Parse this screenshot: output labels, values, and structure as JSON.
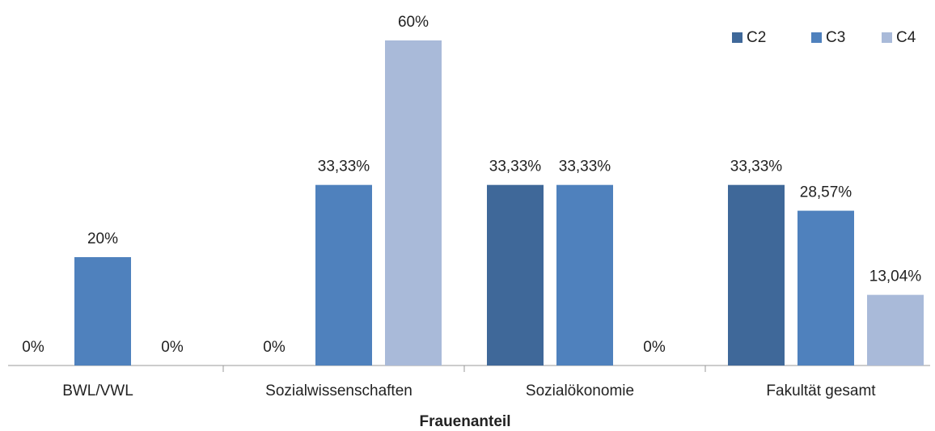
{
  "chart_data": {
    "type": "bar",
    "x_label": "Frauenanteil",
    "categories": [
      "BWL/VWL",
      "Sozialwissenschaften",
      "Sozialökonomie",
      "Fakultät gesamt"
    ],
    "series": [
      {
        "name": "C2",
        "color": "#3f6899",
        "values": [
          0,
          0,
          33.33,
          33.33
        ],
        "value_labels": [
          "0%",
          "0%",
          "33,33%",
          "33,33%"
        ]
      },
      {
        "name": "C3",
        "color": "#4f81bd",
        "values": [
          20,
          33.33,
          33.33,
          28.57
        ],
        "value_labels": [
          "20%",
          "33,33%",
          "33,33%",
          "28,57%"
        ]
      },
      {
        "name": "C4",
        "color": "#a9bad9",
        "values": [
          0,
          60,
          0,
          13.04
        ],
        "value_labels": [
          "0%",
          "60%",
          "0%",
          "13,04%"
        ]
      }
    ],
    "legend": "top-right"
  }
}
